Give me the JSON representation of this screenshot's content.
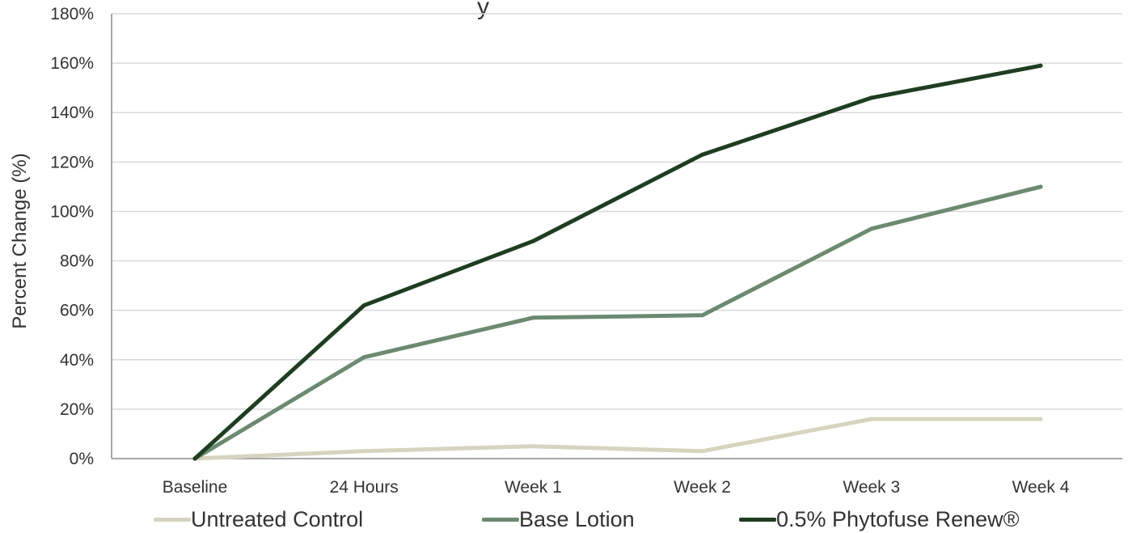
{
  "chart_data": {
    "type": "line",
    "title": "",
    "xlabel": "",
    "ylabel": "Percent Change (%)",
    "categories": [
      "Baseline",
      "24 Hours",
      "Week 1",
      "Week 2",
      "Week 3",
      "Week 4"
    ],
    "ylim": [
      0,
      180
    ],
    "yticks": [
      0,
      20,
      40,
      60,
      80,
      100,
      120,
      140,
      160,
      180
    ],
    "ytick_labels": [
      "0%",
      "20%",
      "40%",
      "60%",
      "80%",
      "100%",
      "120%",
      "140%",
      "160%",
      "180%"
    ],
    "grid": true,
    "legend_position": "bottom",
    "series": [
      {
        "name": "Untreated Control",
        "color": "#d6d3bf",
        "values": [
          0,
          3,
          5,
          3,
          16,
          16
        ]
      },
      {
        "name": "Base Lotion",
        "color": "#6b8a71",
        "values": [
          0,
          41,
          57,
          58,
          93,
          110
        ]
      },
      {
        "name": "0.5% Phytofuse Renew®",
        "color": "#1e3d21",
        "values": [
          0,
          62,
          88,
          123,
          146,
          159
        ]
      }
    ]
  }
}
